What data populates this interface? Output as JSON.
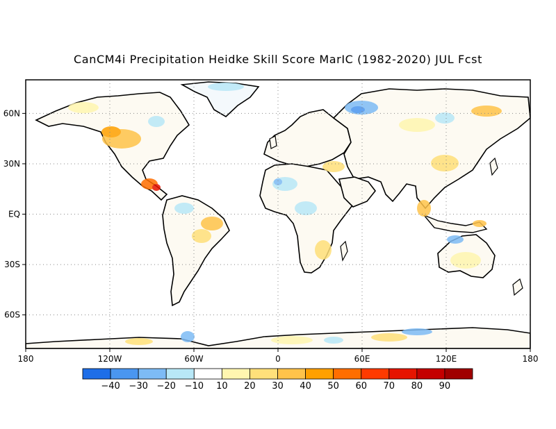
{
  "title": "CanCM4i Precipitation Heidke Skill Score MarIC (1982-2020) JUL Fcst",
  "map": {
    "projection": "equirectangular",
    "lon_range": [
      -180,
      180
    ],
    "lat_range": [
      -80,
      80
    ],
    "grid": "dotted",
    "lon_ticks": [
      {
        "lon": -180,
        "label": "180"
      },
      {
        "lon": -120,
        "label": "120W"
      },
      {
        "lon": -60,
        "label": "60W"
      },
      {
        "lon": 0,
        "label": "0"
      },
      {
        "lon": 60,
        "label": "60E"
      },
      {
        "lon": 120,
        "label": "120E"
      },
      {
        "lon": 180,
        "label": "180"
      }
    ],
    "lat_ticks": [
      {
        "lat": 60,
        "label": "60N"
      },
      {
        "lat": 30,
        "label": "30N"
      },
      {
        "lat": 0,
        "label": "EQ"
      },
      {
        "lat": -30,
        "label": "30S"
      },
      {
        "lat": -60,
        "label": "60S"
      }
    ]
  },
  "colorbar": {
    "colors": [
      "#1e6ee8",
      "#4a96f0",
      "#7dbbf5",
      "#b8e8f7",
      "#ffffff",
      "#fff6b0",
      "#ffe07a",
      "#ffc34a",
      "#ffa000",
      "#ff6e00",
      "#ff3a00",
      "#e61400",
      "#c40000",
      "#a00000"
    ],
    "labels": [
      "-40",
      "-30",
      "-20",
      "-10",
      "10",
      "20",
      "30",
      "40",
      "50",
      "60",
      "70",
      "80",
      "90"
    ]
  }
}
